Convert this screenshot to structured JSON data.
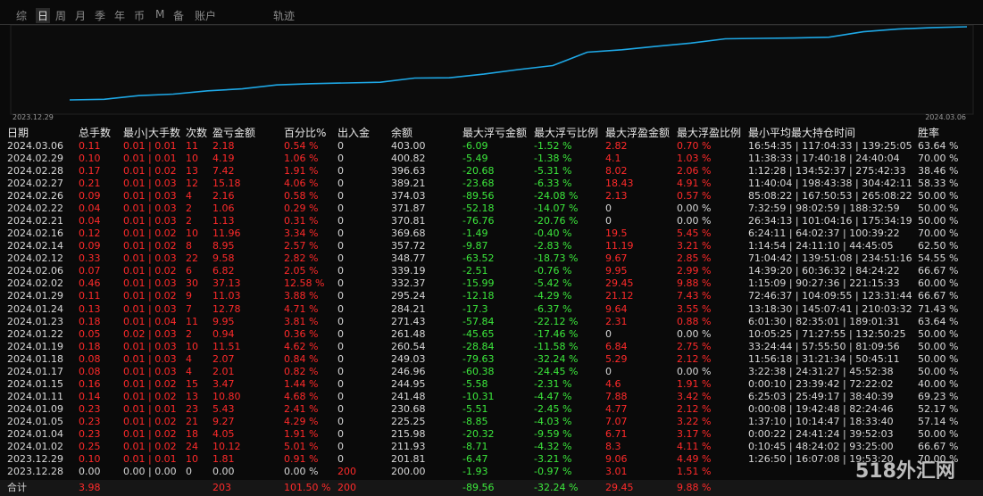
{
  "tabs": [
    "综",
    "日",
    "周",
    "月",
    "季",
    "年",
    "币",
    "M",
    "备",
    "账户"
  ],
  "track_tab": "轨迹",
  "chart": {
    "start_label": "2023.12.29",
    "end_label": "2024.03.06"
  },
  "table": {
    "headers": [
      "日期",
      "总手数",
      "最小|大手数",
      "次数",
      "盈亏金额",
      "百分比%",
      "出入金",
      "余额",
      "最大浮亏金额",
      "最大浮亏比例",
      "最大浮盈金额",
      "最大浮盈比例",
      "最小平均最大持仓时间",
      "胜率"
    ],
    "rows": [
      [
        "2024.03.06",
        "0.11",
        "0.01 | 0.01",
        "11",
        "2.18",
        "0.54 %",
        "0",
        "403.00",
        "-6.09",
        "-1.52 %",
        "2.82",
        "0.70 %",
        "16:54:35 | 117:04:33 | 139:25:05",
        "63.64 %"
      ],
      [
        "2024.02.29",
        "0.10",
        "0.01 | 0.01",
        "10",
        "4.19",
        "1.06 %",
        "0",
        "400.82",
        "-5.49",
        "-1.38 %",
        "4.1",
        "1.03 %",
        "11:38:33 | 17:40:18 | 24:40:04",
        "70.00 %"
      ],
      [
        "2024.02.28",
        "0.17",
        "0.01 | 0.02",
        "13",
        "7.42",
        "1.91 %",
        "0",
        "396.63",
        "-20.68",
        "-5.31 %",
        "8.02",
        "2.06 %",
        "1:12:28 | 134:52:37 | 275:42:33",
        "38.46 %"
      ],
      [
        "2024.02.27",
        "0.21",
        "0.01 | 0.03",
        "12",
        "15.18",
        "4.06 %",
        "0",
        "389.21",
        "-23.68",
        "-6.33 %",
        "18.43",
        "4.91 %",
        "11:40:04 | 198:43:38 | 304:42:11",
        "58.33 %"
      ],
      [
        "2024.02.26",
        "0.09",
        "0.01 | 0.03",
        "4",
        "2.16",
        "0.58 %",
        "0",
        "374.03",
        "-89.56",
        "-24.08 %",
        "2.13",
        "0.57 %",
        "85:08:22 | 167:50:53 | 265:08:22",
        "50.00 %"
      ],
      [
        "2024.02.22",
        "0.04",
        "0.01 | 0.03",
        "2",
        "1.06",
        "0.29 %",
        "0",
        "371.87",
        "-52.18",
        "-14.07 %",
        "0",
        "0.00 %",
        "7:32:59 | 98:02:59 | 188:32:59",
        "50.00 %"
      ],
      [
        "2024.02.21",
        "0.04",
        "0.01 | 0.03",
        "2",
        "1.13",
        "0.31 %",
        "0",
        "370.81",
        "-76.76",
        "-20.76 %",
        "0",
        "0.00 %",
        "26:34:13 | 101:04:16 | 175:34:19",
        "50.00 %"
      ],
      [
        "2024.02.16",
        "0.12",
        "0.01 | 0.02",
        "10",
        "11.96",
        "3.34 %",
        "0",
        "369.68",
        "-1.49",
        "-0.40 %",
        "19.5",
        "5.45 %",
        "6:24:11 | 64:02:37 | 100:39:22",
        "70.00 %"
      ],
      [
        "2024.02.14",
        "0.09",
        "0.01 | 0.02",
        "8",
        "8.95",
        "2.57 %",
        "0",
        "357.72",
        "-9.87",
        "-2.83 %",
        "11.19",
        "3.21 %",
        "1:14:54 | 24:11:10 | 44:45:05",
        "62.50 %"
      ],
      [
        "2024.02.12",
        "0.33",
        "0.01 | 0.03",
        "22",
        "9.58",
        "2.82 %",
        "0",
        "348.77",
        "-63.52",
        "-18.73 %",
        "9.67",
        "2.85 %",
        "71:04:42 | 139:51:08 | 234:51:16",
        "54.55 %"
      ],
      [
        "2024.02.06",
        "0.07",
        "0.01 | 0.02",
        "6",
        "6.82",
        "2.05 %",
        "0",
        "339.19",
        "-2.51",
        "-0.76 %",
        "9.95",
        "2.99 %",
        "14:39:20 | 60:36:32 | 84:24:22",
        "66.67 %"
      ],
      [
        "2024.02.02",
        "0.46",
        "0.01 | 0.03",
        "30",
        "37.13",
        "12.58 %",
        "0",
        "332.37",
        "-15.99",
        "-5.42 %",
        "29.45",
        "9.88 %",
        "1:15:09 | 90:27:36 | 221:15:33",
        "60.00 %"
      ],
      [
        "2024.01.29",
        "0.11",
        "0.01 | 0.02",
        "9",
        "11.03",
        "3.88 %",
        "0",
        "295.24",
        "-12.18",
        "-4.29 %",
        "21.12",
        "7.43 %",
        "72:46:37 | 104:09:55 | 123:31:44",
        "66.67 %"
      ],
      [
        "2024.01.24",
        "0.13",
        "0.01 | 0.03",
        "7",
        "12.78",
        "4.71 %",
        "0",
        "284.21",
        "-17.3",
        "-6.37 %",
        "9.64",
        "3.55 %",
        "13:18:30 | 145:07:41 | 210:03:32",
        "71.43 %"
      ],
      [
        "2024.01.23",
        "0.18",
        "0.01 | 0.04",
        "11",
        "9.95",
        "3.81 %",
        "0",
        "271.43",
        "-57.84",
        "-22.12 %",
        "2.31",
        "0.88 %",
        "6:01:30 | 82:35:01 | 189:01:31",
        "63.64 %"
      ],
      [
        "2024.01.22",
        "0.05",
        "0.02 | 0.03",
        "2",
        "0.94",
        "0.36 %",
        "0",
        "261.48",
        "-45.65",
        "-17.46 %",
        "0",
        "0.00 %",
        "10:05:25 | 71:27:55 | 132:50:25",
        "50.00 %"
      ],
      [
        "2024.01.19",
        "0.18",
        "0.01 | 0.03",
        "10",
        "11.51",
        "4.62 %",
        "0",
        "260.54",
        "-28.84",
        "-11.58 %",
        "6.84",
        "2.75 %",
        "33:24:44 | 57:55:50 | 81:09:56",
        "50.00 %"
      ],
      [
        "2024.01.18",
        "0.08",
        "0.01 | 0.03",
        "4",
        "2.07",
        "0.84 %",
        "0",
        "249.03",
        "-79.63",
        "-32.24 %",
        "5.29",
        "2.12 %",
        "11:56:18 | 31:21:34 | 50:45:11",
        "50.00 %"
      ],
      [
        "2024.01.17",
        "0.08",
        "0.01 | 0.03",
        "4",
        "2.01",
        "0.82 %",
        "0",
        "246.96",
        "-60.38",
        "-24.45 %",
        "0",
        "0.00 %",
        "3:22:38 | 24:31:27 | 45:52:38",
        "50.00 %"
      ],
      [
        "2024.01.15",
        "0.16",
        "0.01 | 0.02",
        "15",
        "3.47",
        "1.44 %",
        "0",
        "244.95",
        "-5.58",
        "-2.31 %",
        "4.6",
        "1.91 %",
        "0:00:10 | 23:39:42 | 72:22:02",
        "40.00 %"
      ],
      [
        "2024.01.11",
        "0.14",
        "0.01 | 0.02",
        "13",
        "10.80",
        "4.68 %",
        "0",
        "241.48",
        "-10.31",
        "-4.47 %",
        "7.88",
        "3.42 %",
        "6:25:03 | 25:49:17 | 38:40:39",
        "69.23 %"
      ],
      [
        "2024.01.09",
        "0.23",
        "0.01 | 0.01",
        "23",
        "5.43",
        "2.41 %",
        "0",
        "230.68",
        "-5.51",
        "-2.45 %",
        "4.77",
        "2.12 %",
        "0:00:08 | 19:42:48 | 82:24:46",
        "52.17 %"
      ],
      [
        "2024.01.05",
        "0.23",
        "0.01 | 0.02",
        "21",
        "9.27",
        "4.29 %",
        "0",
        "225.25",
        "-8.85",
        "-4.03 %",
        "7.07",
        "3.22 %",
        "1:37:10 | 10:14:47 | 18:33:40",
        "57.14 %"
      ],
      [
        "2024.01.04",
        "0.23",
        "0.01 | 0.02",
        "18",
        "4.05",
        "1.91 %",
        "0",
        "215.98",
        "-20.32",
        "-9.59 %",
        "6.71",
        "3.17 %",
        "0:00:22 | 24:41:24 | 39:52:03",
        "50.00 %"
      ],
      [
        "2024.01.02",
        "0.25",
        "0.01 | 0.02",
        "24",
        "10.12",
        "5.01 %",
        "0",
        "211.93",
        "-8.71",
        "-4.32 %",
        "8.3",
        "4.11 %",
        "0:10:45 | 48:24:02 | 93:25:00",
        "66.67 %"
      ],
      [
        "2023.12.29",
        "0.10",
        "0.01 | 0.01",
        "10",
        "1.81",
        "0.91 %",
        "0",
        "201.81",
        "-6.47",
        "-3.21 %",
        "9.06",
        "4.49 %",
        "1:26:50 | 16:07:08 | 19:53:20",
        "70.00 %"
      ],
      [
        "2023.12.28",
        "0.00",
        "0.00 | 0.00",
        "0",
        "0.00",
        "0.00 %",
        "200",
        "200.00",
        "-1.93",
        "-0.97 %",
        "3.01",
        "1.51 %"
      ]
    ],
    "total": [
      "合计",
      "3.98",
      null,
      null,
      "203",
      "101.50 %",
      "200",
      null,
      "-89.56",
      "-32.24 %",
      "29.45",
      "9.88 %"
    ]
  },
  "watermark": "518外汇网"
}
